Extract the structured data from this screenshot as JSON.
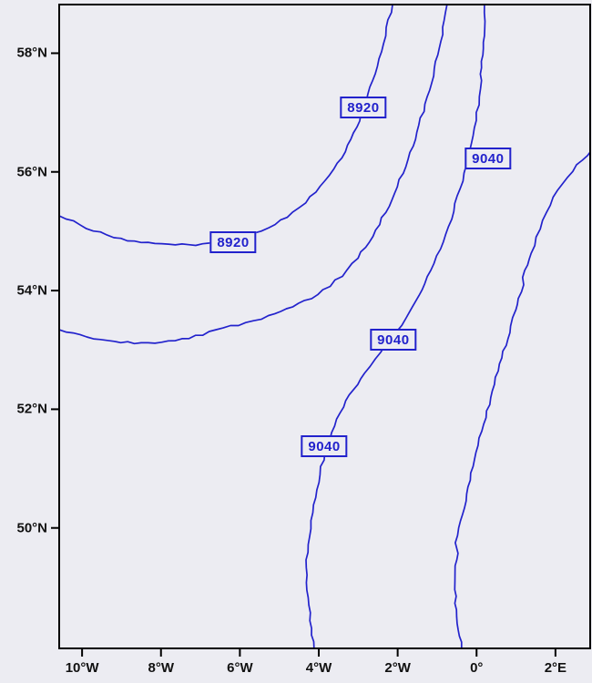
{
  "figure": {
    "background_color": "#ececf2",
    "frame_color": "#000000",
    "contour_color": "#2222cc"
  },
  "chart_data": {
    "type": "line",
    "subtype": "contour_map",
    "title": "",
    "xlabel": "",
    "ylabel": "",
    "grid": false,
    "x_axis": {
      "range": [
        -10.58,
        2.88
      ],
      "ticks": [
        {
          "label": "10°W",
          "value": -10
        },
        {
          "label": "8°W",
          "value": -8
        },
        {
          "label": "6°W",
          "value": -6
        },
        {
          "label": "4°W",
          "value": -4
        },
        {
          "label": "2°W",
          "value": -2
        },
        {
          "label": "0°",
          "value": 0
        },
        {
          "label": "2°E",
          "value": 2
        }
      ]
    },
    "y_axis": {
      "range": [
        47.97,
        58.82
      ],
      "ticks": [
        {
          "label": "58°N",
          "value": 58
        },
        {
          "label": "56°N",
          "value": 56
        },
        {
          "label": "54°N",
          "value": 54
        },
        {
          "label": "52°N",
          "value": 52
        },
        {
          "label": "50°N",
          "value": 50
        }
      ]
    },
    "series": [
      {
        "name": "contour-8920",
        "value": 8920,
        "points": [
          [
            -10.58,
            55.26
          ],
          [
            -9.88,
            55.06
          ],
          [
            -9.19,
            54.9
          ],
          [
            -8.5,
            54.81
          ],
          [
            -7.81,
            54.77
          ],
          [
            -7.12,
            54.77
          ],
          [
            -6.42,
            54.81
          ],
          [
            -5.85,
            54.9
          ],
          [
            -5.27,
            55.06
          ],
          [
            -4.81,
            55.24
          ],
          [
            -4.35,
            55.49
          ],
          [
            -3.95,
            55.75
          ],
          [
            -3.61,
            56.04
          ],
          [
            -3.33,
            56.34
          ],
          [
            -3.1,
            56.65
          ],
          [
            -2.92,
            56.97
          ],
          [
            -2.75,
            57.31
          ],
          [
            -2.59,
            57.66
          ],
          [
            -2.43,
            58.03
          ],
          [
            -2.27,
            58.43
          ],
          [
            -2.13,
            58.82
          ]
        ]
      },
      {
        "name": "contour-unlabeled-1",
        "value": null,
        "points": [
          [
            -10.58,
            53.34
          ],
          [
            -9.88,
            53.22
          ],
          [
            -9.19,
            53.14
          ],
          [
            -8.5,
            53.11
          ],
          [
            -7.81,
            53.14
          ],
          [
            -7.12,
            53.23
          ],
          [
            -6.42,
            53.36
          ],
          [
            -5.85,
            53.46
          ],
          [
            -5.27,
            53.57
          ],
          [
            -4.81,
            53.68
          ],
          [
            -4.35,
            53.82
          ],
          [
            -3.88,
            54.0
          ],
          [
            -3.42,
            54.25
          ],
          [
            -3.01,
            54.55
          ],
          [
            -2.64,
            54.92
          ],
          [
            -2.31,
            55.32
          ],
          [
            -2.01,
            55.75
          ],
          [
            -1.74,
            56.21
          ],
          [
            -1.51,
            56.67
          ],
          [
            -1.3,
            57.14
          ],
          [
            -1.11,
            57.62
          ],
          [
            -0.95,
            58.09
          ],
          [
            -0.81,
            58.55
          ],
          [
            -0.75,
            58.82
          ]
        ]
      },
      {
        "name": "contour-9040",
        "value": 9040,
        "points": [
          [
            -4.12,
            47.97
          ],
          [
            -4.18,
            48.31
          ],
          [
            -4.25,
            48.7
          ],
          [
            -4.3,
            49.08
          ],
          [
            -4.3,
            49.46
          ],
          [
            -4.25,
            49.85
          ],
          [
            -4.16,
            50.26
          ],
          [
            -4.05,
            50.64
          ],
          [
            -3.93,
            51.03
          ],
          [
            -3.79,
            51.38
          ],
          [
            -3.61,
            51.72
          ],
          [
            -3.38,
            52.04
          ],
          [
            -3.12,
            52.33
          ],
          [
            -2.85,
            52.61
          ],
          [
            -2.57,
            52.85
          ],
          [
            -2.29,
            53.08
          ],
          [
            -2.04,
            53.3
          ],
          [
            -1.78,
            53.54
          ],
          [
            -1.55,
            53.82
          ],
          [
            -1.32,
            54.12
          ],
          [
            -1.09,
            54.46
          ],
          [
            -0.86,
            54.83
          ],
          [
            -0.65,
            55.21
          ],
          [
            -0.47,
            55.59
          ],
          [
            -0.31,
            55.98
          ],
          [
            -0.17,
            56.36
          ],
          [
            -0.05,
            56.74
          ],
          [
            0.04,
            57.13
          ],
          [
            0.11,
            57.54
          ],
          [
            0.15,
            57.97
          ],
          [
            0.18,
            58.4
          ],
          [
            0.2,
            58.82
          ]
        ]
      },
      {
        "name": "contour-unlabeled-2",
        "value": null,
        "points": [
          [
            -0.38,
            47.97
          ],
          [
            -0.45,
            48.28
          ],
          [
            -0.51,
            48.62
          ],
          [
            -0.56,
            48.96
          ],
          [
            -0.56,
            49.26
          ],
          [
            -0.49,
            49.57
          ],
          [
            -0.54,
            49.75
          ],
          [
            -0.45,
            50.0
          ],
          [
            -0.33,
            50.34
          ],
          [
            -0.21,
            50.69
          ],
          [
            -0.1,
            51.04
          ],
          [
            0.04,
            51.39
          ],
          [
            0.18,
            51.75
          ],
          [
            0.32,
            52.08
          ],
          [
            0.45,
            52.42
          ],
          [
            0.59,
            52.76
          ],
          [
            0.73,
            53.08
          ],
          [
            0.87,
            53.4
          ],
          [
            0.99,
            53.68
          ],
          [
            1.08,
            53.86
          ],
          [
            1.17,
            54.1
          ],
          [
            1.22,
            54.34
          ],
          [
            1.38,
            54.63
          ],
          [
            1.52,
            54.9
          ],
          [
            1.68,
            55.18
          ],
          [
            1.86,
            55.44
          ],
          [
            2.07,
            55.69
          ],
          [
            2.3,
            55.92
          ],
          [
            2.55,
            56.11
          ],
          [
            2.81,
            56.28
          ],
          [
            2.9,
            56.35
          ]
        ]
      }
    ],
    "contour_labels": [
      {
        "text": "8920",
        "lon": -2.87,
        "lat": 57.09
      },
      {
        "text": "9040",
        "lon": 0.29,
        "lat": 56.22
      },
      {
        "text": "8920",
        "lon": -6.17,
        "lat": 54.81
      },
      {
        "text": "9040",
        "lon": -2.11,
        "lat": 53.17
      },
      {
        "text": "9040",
        "lon": -3.86,
        "lat": 51.38
      }
    ]
  }
}
